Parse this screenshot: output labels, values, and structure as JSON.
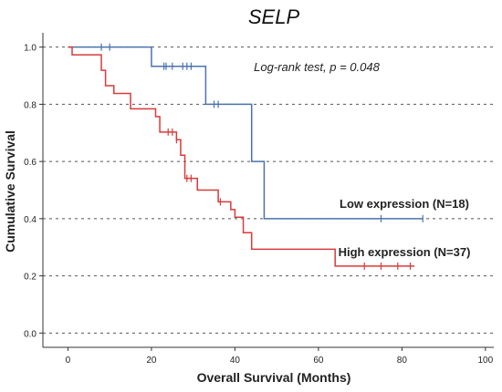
{
  "chart_data": {
    "type": "line",
    "subtype": "kaplan-meier",
    "title": "SELP",
    "xlabel": "Overall Survival (Months)",
    "ylabel": "Cumulative Survival",
    "xlim": [
      -6,
      102
    ],
    "ylim": [
      -0.05,
      1.05
    ],
    "x_ticks": [
      0,
      20,
      40,
      60,
      80,
      100
    ],
    "y_ticks": [
      0.0,
      0.2,
      0.4,
      0.6,
      0.8,
      1.0
    ],
    "x_tick_labels": [
      "0",
      "20",
      "40",
      "60",
      "80",
      "100"
    ],
    "y_tick_labels": [
      "0.0",
      "0.2",
      "0.4",
      "0.6",
      "0.8",
      "1.0"
    ],
    "grid": "horizontal dashed",
    "annotation": "Log-rank test, p = 0.048",
    "series": [
      {
        "name": "Low expression (N=18)",
        "color": "#4a73b0",
        "steps": [
          [
            0,
            1.0
          ],
          [
            20,
            0.933
          ],
          [
            33,
            0.8
          ],
          [
            44,
            0.6
          ],
          [
            47,
            0.4
          ],
          [
            85,
            0.4
          ]
        ],
        "censored": [
          [
            8,
            1.0
          ],
          [
            10,
            1.0
          ],
          [
            23,
            0.933
          ],
          [
            23.5,
            0.933
          ],
          [
            25,
            0.933
          ],
          [
            27.5,
            0.933
          ],
          [
            28.5,
            0.933
          ],
          [
            29.5,
            0.933
          ],
          [
            35,
            0.8
          ],
          [
            36,
            0.8
          ],
          [
            75,
            0.4
          ],
          [
            85,
            0.4
          ]
        ]
      },
      {
        "name": "High expression (N=37)",
        "color": "#d93a3a",
        "steps": [
          [
            0,
            1.0
          ],
          [
            1,
            0.973
          ],
          [
            8,
            0.919
          ],
          [
            9,
            0.865
          ],
          [
            11,
            0.838
          ],
          [
            15,
            0.784
          ],
          [
            21,
            0.757
          ],
          [
            22,
            0.703
          ],
          [
            26,
            0.676
          ],
          [
            27,
            0.622
          ],
          [
            28,
            0.541
          ],
          [
            31,
            0.5
          ],
          [
            36,
            0.459
          ],
          [
            39,
            0.432
          ],
          [
            40,
            0.405
          ],
          [
            42,
            0.351
          ],
          [
            44,
            0.293
          ],
          [
            64,
            0.234
          ],
          [
            83,
            0.234
          ]
        ],
        "censored": [
          [
            24,
            0.703
          ],
          [
            25,
            0.703
          ],
          [
            26,
            0.676
          ],
          [
            28.5,
            0.541
          ],
          [
            29.5,
            0.541
          ],
          [
            36.5,
            0.459
          ],
          [
            71,
            0.234
          ],
          [
            75,
            0.234
          ],
          [
            79,
            0.234
          ],
          [
            82,
            0.234
          ]
        ]
      }
    ]
  }
}
